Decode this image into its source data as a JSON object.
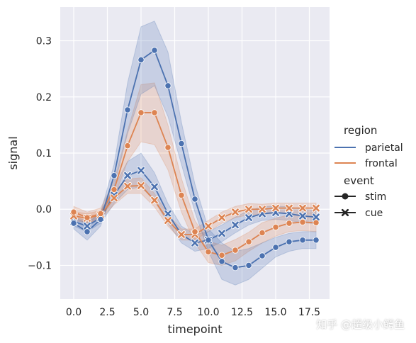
{
  "chart_data": {
    "type": "line",
    "xlabel": "timepoint",
    "ylabel": "signal",
    "x": [
      0,
      1,
      2,
      3,
      4,
      5,
      6,
      7,
      8,
      9,
      10,
      11,
      12,
      13,
      14,
      15,
      16,
      17,
      18
    ],
    "xlim": [
      -1,
      19
    ],
    "ylim": [
      -0.16,
      0.36
    ],
    "x_ticks": [
      0,
      2.5,
      5,
      7.5,
      10,
      12.5,
      15,
      17.5
    ],
    "x_tick_labels": [
      "0.0",
      "2.5",
      "5.0",
      "7.5",
      "10.0",
      "12.5",
      "15.0",
      "17.5"
    ],
    "y_ticks": [
      -0.1,
      0,
      0.1,
      0.2,
      0.3
    ],
    "y_tick_labels": [
      "−0.1",
      "0.0",
      "0.1",
      "0.2",
      "0.3"
    ],
    "grid": true,
    "legend_position": "right",
    "background_color": "#eaeaf2",
    "series": [
      {
        "name": "parietal-stim",
        "region": "parietal",
        "event": "stim",
        "color": "#4c72b0",
        "marker": "circle",
        "values": [
          -0.025,
          -0.04,
          -0.018,
          0.06,
          0.177,
          0.266,
          0.283,
          0.22,
          0.117,
          0.018,
          -0.055,
          -0.093,
          -0.104,
          -0.1,
          -0.083,
          -0.068,
          -0.058,
          -0.055,
          -0.055
        ],
        "ci_low": [
          -0.035,
          -0.055,
          -0.03,
          0.04,
          0.135,
          0.205,
          0.22,
          0.165,
          0.08,
          -0.005,
          -0.075,
          -0.125,
          -0.135,
          -0.125,
          -0.105,
          -0.085,
          -0.075,
          -0.07,
          -0.07
        ],
        "ci_high": [
          -0.015,
          -0.025,
          -0.006,
          0.08,
          0.225,
          0.325,
          0.335,
          0.28,
          0.155,
          0.045,
          -0.035,
          -0.06,
          -0.075,
          -0.07,
          -0.06,
          -0.05,
          -0.043,
          -0.04,
          -0.04
        ]
      },
      {
        "name": "frontal-stim",
        "region": "frontal",
        "event": "stim",
        "color": "#dd8452",
        "marker": "circle",
        "values": [
          -0.005,
          -0.015,
          -0.008,
          0.035,
          0.113,
          0.172,
          0.172,
          0.11,
          0.025,
          -0.04,
          -0.076,
          -0.082,
          -0.073,
          -0.058,
          -0.042,
          -0.032,
          -0.025,
          -0.023,
          -0.024
        ],
        "ci_low": [
          -0.015,
          -0.025,
          -0.018,
          0.02,
          0.085,
          0.12,
          0.115,
          0.07,
          -0.005,
          -0.06,
          -0.095,
          -0.1,
          -0.092,
          -0.075,
          -0.06,
          -0.048,
          -0.04,
          -0.038,
          -0.04
        ],
        "ci_high": [
          0.005,
          -0.005,
          0.002,
          0.05,
          0.14,
          0.222,
          0.225,
          0.15,
          0.055,
          -0.02,
          -0.057,
          -0.064,
          -0.054,
          -0.041,
          -0.024,
          -0.016,
          -0.01,
          -0.008,
          -0.008
        ]
      },
      {
        "name": "parietal-cue",
        "region": "parietal",
        "event": "cue",
        "color": "#4c72b0",
        "marker": "x",
        "values": [
          -0.022,
          -0.03,
          -0.015,
          0.025,
          0.06,
          0.069,
          0.04,
          -0.008,
          -0.045,
          -0.06,
          -0.055,
          -0.043,
          -0.028,
          -0.015,
          -0.008,
          -0.006,
          -0.008,
          -0.012,
          -0.014
        ],
        "ci_low": [
          -0.03,
          -0.04,
          -0.025,
          0.01,
          0.035,
          0.04,
          0.015,
          -0.025,
          -0.06,
          -0.075,
          -0.07,
          -0.058,
          -0.042,
          -0.028,
          -0.02,
          -0.018,
          -0.02,
          -0.024,
          -0.026
        ],
        "ci_high": [
          -0.014,
          -0.02,
          -0.005,
          0.04,
          0.085,
          0.1,
          0.065,
          0.01,
          -0.03,
          -0.045,
          -0.04,
          -0.028,
          -0.014,
          -0.002,
          0.004,
          0.006,
          0.004,
          0.0,
          -0.002
        ]
      },
      {
        "name": "frontal-cue",
        "region": "frontal",
        "event": "cue",
        "color": "#dd8452",
        "marker": "x",
        "values": [
          -0.012,
          -0.016,
          -0.01,
          0.02,
          0.041,
          0.042,
          0.016,
          -0.02,
          -0.045,
          -0.045,
          -0.03,
          -0.015,
          -0.005,
          0.0,
          0.0,
          0.002,
          0.002,
          0.002,
          0.002
        ],
        "ci_low": [
          -0.02,
          -0.024,
          -0.018,
          0.008,
          0.028,
          0.028,
          0.004,
          -0.03,
          -0.055,
          -0.055,
          -0.04,
          -0.025,
          -0.015,
          -0.01,
          -0.009,
          -0.007,
          -0.007,
          -0.007,
          -0.007
        ],
        "ci_high": [
          -0.004,
          -0.008,
          -0.002,
          0.032,
          0.054,
          0.056,
          0.028,
          -0.01,
          -0.035,
          -0.035,
          -0.02,
          -0.005,
          0.005,
          0.01,
          0.009,
          0.011,
          0.011,
          0.011,
          0.011
        ]
      }
    ],
    "legend": {
      "hue_title": "region",
      "hue_entries": [
        {
          "label": "parietal",
          "color": "#4c72b0"
        },
        {
          "label": "frontal",
          "color": "#dd8452"
        }
      ],
      "style_title": "event",
      "style_entries": [
        {
          "label": "stim",
          "marker": "circle"
        },
        {
          "label": "cue",
          "marker": "x"
        }
      ]
    }
  },
  "watermark": "知乎 @超级小鳄鱼"
}
